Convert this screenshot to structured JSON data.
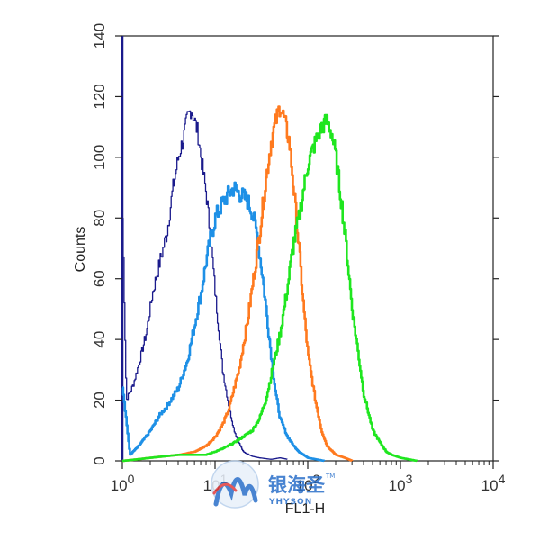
{
  "chart_data": {
    "type": "line",
    "title": "",
    "xlabel": "FL1-H",
    "ylabel": "Counts",
    "x_scale": "log",
    "xlim": [
      1,
      10000
    ],
    "ylim": [
      0,
      140
    ],
    "grid": false,
    "legend": "none",
    "x_ticks": [
      {
        "value": 1,
        "base": "10",
        "exp": "0"
      },
      {
        "value": 10,
        "base": "10",
        "exp": "1"
      },
      {
        "value": 100,
        "base": "10",
        "exp": "2"
      },
      {
        "value": 1000,
        "base": "10",
        "exp": "3"
      },
      {
        "value": 10000,
        "base": "10",
        "exp": "4"
      }
    ],
    "y_ticks": [
      "0",
      "20",
      "40",
      "60",
      "80",
      "100",
      "120",
      "140"
    ],
    "series": [
      {
        "color": "#1a1a8c",
        "x": [
          1,
          1.1,
          1.3,
          1.5,
          1.8,
          2.1,
          2.5,
          3,
          3.5,
          4,
          4.5,
          5,
          5.5,
          6,
          6.5,
          7,
          8,
          9,
          10,
          11,
          12,
          14,
          16,
          18,
          20,
          25,
          30,
          40,
          50,
          60
        ],
        "y": [
          80,
          20,
          25,
          32,
          42,
          55,
          65,
          75,
          90,
          100,
          106,
          113,
          116,
          112,
          108,
          100,
          88,
          72,
          55,
          42,
          30,
          18,
          10,
          6,
          3,
          1.5,
          1,
          0.5,
          1,
          0.5
        ]
      },
      {
        "color": "#1e90e6",
        "x": [
          1,
          1.2,
          1.5,
          2,
          2.5,
          3,
          4,
          5,
          6,
          7,
          8,
          9,
          10,
          12,
          14,
          16,
          18,
          20,
          22,
          25,
          28,
          32,
          36,
          40,
          45,
          50,
          60,
          70,
          80,
          100,
          150
        ],
        "y": [
          25,
          2,
          5,
          10,
          15,
          18,
          24,
          33,
          45,
          55,
          66,
          74,
          80,
          85,
          88,
          90,
          88,
          87,
          86,
          82,
          75,
          62,
          48,
          35,
          22,
          14,
          8,
          5,
          3,
          1,
          0
        ]
      },
      {
        "color": "#ff7a1f",
        "x": [
          1,
          2,
          4,
          6,
          8,
          10,
          12,
          14,
          16,
          18,
          20,
          22,
          25,
          28,
          32,
          36,
          40,
          45,
          50,
          56,
          63,
          70,
          80,
          90,
          100,
          120,
          140,
          160,
          200,
          250,
          300
        ],
        "y": [
          0,
          1,
          2,
          3,
          5,
          8,
          12,
          17,
          24,
          30,
          38,
          45,
          57,
          68,
          82,
          95,
          105,
          112,
          117,
          112,
          105,
          90,
          70,
          50,
          35,
          20,
          10,
          5,
          2,
          1,
          0
        ]
      },
      {
        "color": "#1fe61f",
        "x": [
          1,
          2,
          4,
          8,
          12,
          16,
          20,
          25,
          30,
          35,
          40,
          50,
          60,
          70,
          80,
          90,
          100,
          120,
          140,
          160,
          180,
          200,
          230,
          260,
          300,
          350,
          400,
          500,
          600,
          700,
          800,
          1000,
          1500
        ],
        "y": [
          0,
          1,
          2,
          2,
          4,
          6,
          8,
          10,
          14,
          20,
          28,
          42,
          57,
          72,
          80,
          90,
          98,
          105,
          110,
          112,
          108,
          100,
          85,
          70,
          50,
          35,
          22,
          10,
          6,
          3,
          2,
          1,
          0
        ]
      }
    ]
  },
  "watermark": {
    "brand_cn": "银海圣",
    "trademark": "TM",
    "brand_en": "YHYSON"
  }
}
